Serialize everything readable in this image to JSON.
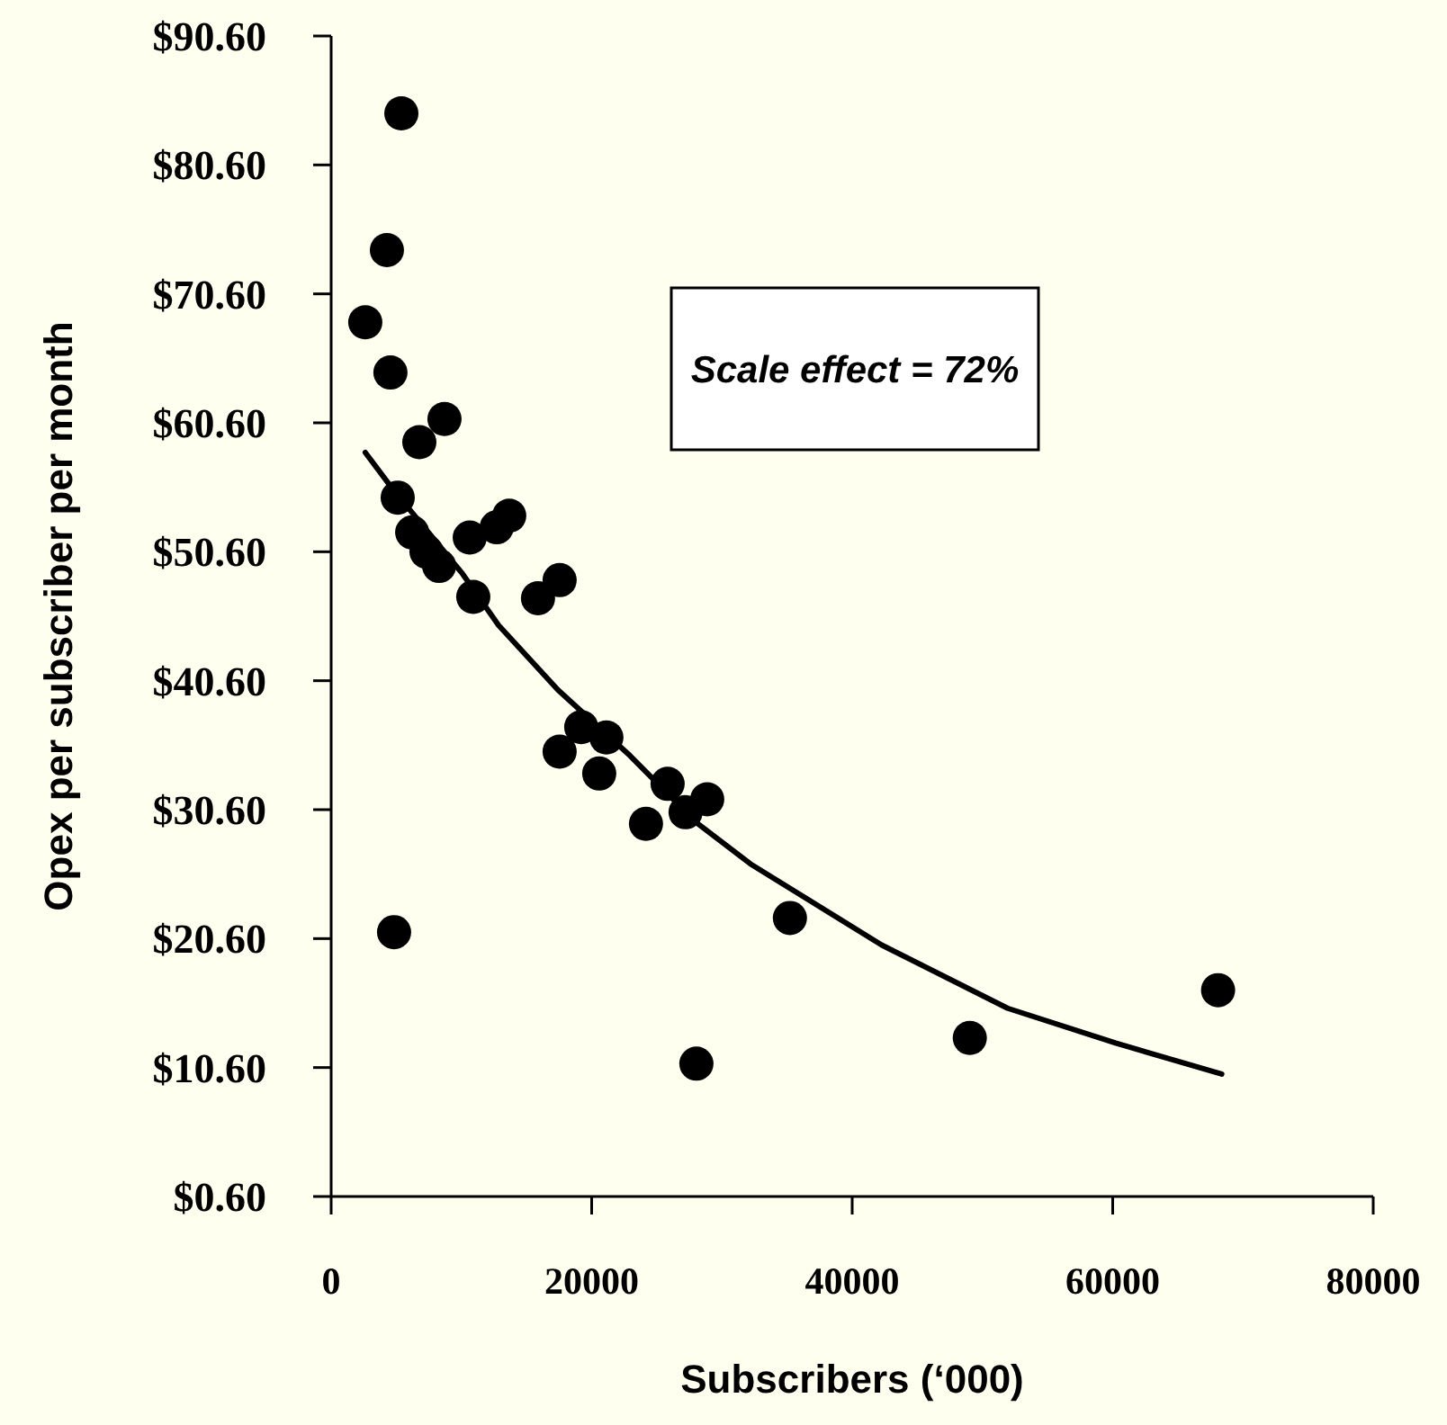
{
  "chart_data": {
    "type": "scatter",
    "xlabel": "Subscribers (‘000)",
    "ylabel": "Opex per subscriber per month",
    "xlim": [
      0,
      80000
    ],
    "xticks": [
      0,
      20000,
      40000,
      60000,
      80000
    ],
    "ylim": [
      0.6,
      90.6
    ],
    "yticks": [
      {
        "value": 0.6,
        "label": "$0.60"
      },
      {
        "value": 10.6,
        "label": "$10.60"
      },
      {
        "value": 20.6,
        "label": "$20.60"
      },
      {
        "value": 30.6,
        "label": "$30.60"
      },
      {
        "value": 40.6,
        "label": "$40.60"
      },
      {
        "value": 50.6,
        "label": "$50.60"
      },
      {
        "value": 60.6,
        "label": "$60.60"
      },
      {
        "value": 70.6,
        "label": "$70.60"
      },
      {
        "value": 80.6,
        "label": "$80.60"
      },
      {
        "value": 90.6,
        "label": "$90.60"
      }
    ],
    "grid": false,
    "marker": "circle",
    "annotations": [
      "Scale effect = 72%"
    ],
    "series": [
      {
        "color": "#000000",
        "x": [
          5390,
          4280,
          2620,
          4550,
          8700,
          6770,
          5110,
          6220,
          7320,
          8290,
          10910,
          10640,
          12710,
          13670,
          15880,
          17540,
          17540,
          19200,
          21130,
          20580,
          24170,
          25830,
          27210,
          28870,
          4830,
          28040,
          35220,
          49030,
          68090
        ],
        "values": [
          84.6,
          74.0,
          68.4,
          64.5,
          60.9,
          59.1,
          54.8,
          52.1,
          50.6,
          49.5,
          47.1,
          51.7,
          52.5,
          53.4,
          47.0,
          48.4,
          35.1,
          37.0,
          36.2,
          33.4,
          29.5,
          32.6,
          30.4,
          31.4,
          21.1,
          10.9,
          22.2,
          12.9,
          16.6
        ]
      },
      {
        "type": "line",
        "color": "#000000",
        "marker": "none",
        "x": [
          2620,
          4700,
          10080,
          12850,
          17400,
          22930,
          28040,
          32180,
          42270,
          51930,
          60220,
          68370
        ],
        "values": [
          58.3,
          55.5,
          48.9,
          44.9,
          39.9,
          34.8,
          29.6,
          26.4,
          20.1,
          15.2,
          12.5,
          10.1
        ]
      }
    ]
  }
}
